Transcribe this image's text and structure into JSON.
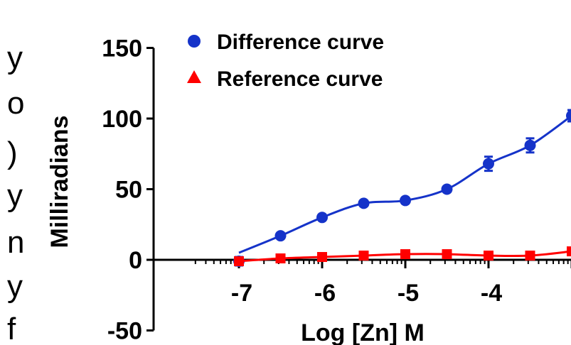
{
  "left_edge_text": [
    "y",
    "o",
    ")",
    "y",
    "n",
    "y",
    "f"
  ],
  "chart_data": {
    "type": "scatter",
    "xlabel": "Log [Zn] M",
    "ylabel": "Milliradians",
    "xlim": [
      -7.3,
      -3.3
    ],
    "ylim": [
      -50,
      150
    ],
    "x_ticks": [
      -7,
      -6,
      -5,
      -4,
      -3
    ],
    "x_tick_labels": [
      "-7",
      "-6",
      "-5",
      "-4",
      "-"
    ],
    "y_ticks": [
      -50,
      0,
      50,
      100,
      150
    ],
    "y_tick_labels": [
      "-50",
      "0",
      "50",
      "100",
      "150"
    ],
    "legend_position": "top-left",
    "series": [
      {
        "name": "Difference curve",
        "color": "#1533c9",
        "marker": "circle",
        "x": [
          -7.0,
          -6.5,
          -6.0,
          -5.5,
          -5.0,
          -4.5,
          -4.0,
          -3.5,
          -3.0
        ],
        "y": [
          -1,
          17,
          30,
          40,
          42,
          50,
          68,
          81,
          102
        ],
        "error": [
          3,
          2,
          2,
          2,
          2,
          2,
          5,
          5,
          4
        ]
      },
      {
        "name": "Reference curve",
        "color": "#ff0000",
        "marker": "triangle",
        "x": [
          -7.0,
          -6.5,
          -6.0,
          -5.5,
          -5.0,
          -4.5,
          -4.0,
          -3.5,
          -3.0
        ],
        "y": [
          -1,
          1,
          2,
          3,
          4,
          4,
          3,
          3,
          6
        ],
        "error": [
          1,
          1,
          1,
          1,
          1,
          1,
          1,
          1,
          1
        ]
      }
    ]
  }
}
